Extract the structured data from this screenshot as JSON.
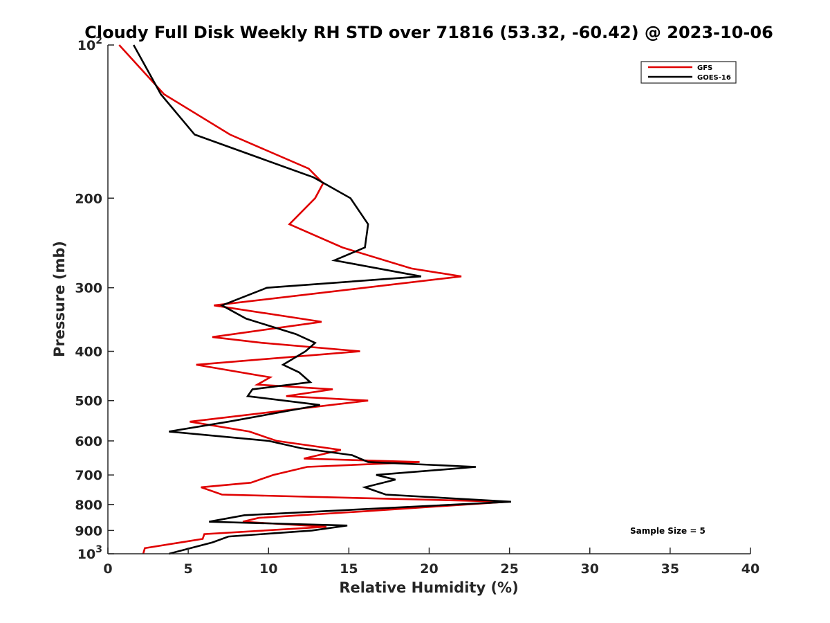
{
  "chart_data": {
    "type": "line",
    "title": "Cloudy Full Disk Weekly RH STD over 71816 (53.32, -60.42) @ 2023-10-06",
    "xlabel": "Relative Humidity (%)",
    "ylabel": "Pressure (mb)",
    "xlim": [
      0,
      40
    ],
    "ylim": [
      100,
      1000
    ],
    "y_scale": "log",
    "y_reversed": true,
    "x_ticks": [
      0,
      5,
      10,
      15,
      20,
      25,
      30,
      35,
      40
    ],
    "x_tick_labels": [
      "0",
      "5",
      "10",
      "15",
      "20",
      "25",
      "30",
      "35",
      "40"
    ],
    "y_ticks": [
      100,
      200,
      300,
      400,
      500,
      600,
      700,
      800,
      900,
      1000
    ],
    "y_tick_labels": [
      {
        "base": "10",
        "exp": "2"
      },
      {
        "base": "200",
        "exp": ""
      },
      {
        "base": "300",
        "exp": ""
      },
      {
        "base": "400",
        "exp": ""
      },
      {
        "base": "500",
        "exp": ""
      },
      {
        "base": "600",
        "exp": ""
      },
      {
        "base": "700",
        "exp": ""
      },
      {
        "base": "800",
        "exp": ""
      },
      {
        "base": "900",
        "exp": ""
      },
      {
        "base": "10",
        "exp": "3"
      }
    ],
    "grid": false,
    "legend_position": "top-right",
    "annotation": "Sample Size = 5",
    "series": [
      {
        "name": "GFS",
        "color": "#e00000",
        "points": [
          [
            0.7,
            100
          ],
          [
            3.5,
            125
          ],
          [
            7.6,
            150
          ],
          [
            12.5,
            175
          ],
          [
            13.4,
            187
          ],
          [
            12.9,
            200
          ],
          [
            11.3,
            225
          ],
          [
            14.6,
            250
          ],
          [
            18.9,
            275
          ],
          [
            22.0,
            285
          ],
          [
            6.6,
            325
          ],
          [
            13.3,
            350
          ],
          [
            6.5,
            375
          ],
          [
            9.6,
            385
          ],
          [
            15.7,
            400
          ],
          [
            5.5,
            425
          ],
          [
            10.1,
            450
          ],
          [
            9.3,
            465
          ],
          [
            14.0,
            475
          ],
          [
            11.1,
            490
          ],
          [
            16.2,
            500
          ],
          [
            5.1,
            550
          ],
          [
            8.8,
            575
          ],
          [
            10.5,
            600
          ],
          [
            14.5,
            625
          ],
          [
            12.2,
            650
          ],
          [
            19.4,
            660
          ],
          [
            12.4,
            675
          ],
          [
            10.3,
            700
          ],
          [
            8.9,
            725
          ],
          [
            5.8,
            740
          ],
          [
            7.1,
            765
          ],
          [
            24.9,
            790
          ],
          [
            16.0,
            825
          ],
          [
            9.4,
            850
          ],
          [
            8.4,
            865
          ],
          [
            13.6,
            885
          ],
          [
            6.0,
            915
          ],
          [
            5.9,
            935
          ],
          [
            2.3,
            975
          ],
          [
            2.2,
            1000
          ]
        ]
      },
      {
        "name": "GOES-16",
        "color": "#000000",
        "points": [
          [
            1.6,
            100
          ],
          [
            3.3,
            125
          ],
          [
            5.4,
            150
          ],
          [
            12.8,
            182
          ],
          [
            15.1,
            200
          ],
          [
            16.2,
            225
          ],
          [
            16.0,
            250
          ],
          [
            14.1,
            265
          ],
          [
            19.5,
            285
          ],
          [
            9.9,
            300
          ],
          [
            7.1,
            325
          ],
          [
            8.6,
            345
          ],
          [
            11.7,
            370
          ],
          [
            12.9,
            385
          ],
          [
            12.3,
            400
          ],
          [
            10.9,
            425
          ],
          [
            11.9,
            440
          ],
          [
            12.6,
            460
          ],
          [
            9.0,
            475
          ],
          [
            8.7,
            490
          ],
          [
            13.2,
            510
          ],
          [
            7.5,
            550
          ],
          [
            3.8,
            575
          ],
          [
            10.0,
            600
          ],
          [
            12.0,
            620
          ],
          [
            15.2,
            640
          ],
          [
            16.2,
            660
          ],
          [
            22.9,
            675
          ],
          [
            16.7,
            700
          ],
          [
            17.9,
            715
          ],
          [
            16.0,
            740
          ],
          [
            17.3,
            765
          ],
          [
            25.1,
            790
          ],
          [
            8.5,
            840
          ],
          [
            6.3,
            865
          ],
          [
            14.9,
            880
          ],
          [
            12.7,
            900
          ],
          [
            7.5,
            925
          ],
          [
            6.5,
            950
          ],
          [
            3.8,
            1000
          ]
        ]
      }
    ]
  }
}
